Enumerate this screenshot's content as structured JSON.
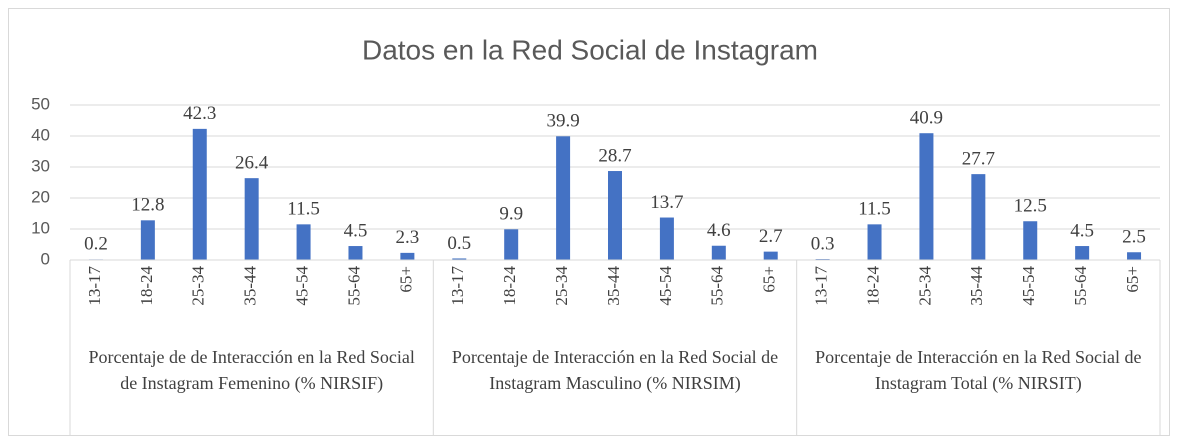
{
  "chart_data": {
    "type": "bar",
    "title": "Datos en la Red Social de Instagram",
    "color": "#4472c4",
    "ylim": [
      0,
      50
    ],
    "yticks": [
      0,
      10,
      20,
      30,
      40,
      50
    ],
    "grid": true,
    "groups": [
      {
        "label": "Porcentaje de de Interacción en la Red Social de Instagram Femenino (% NIRSIF)",
        "categories": [
          "13-17",
          "18-24",
          "25-34",
          "35-44",
          "45-54",
          "55-64",
          "65+"
        ],
        "values": [
          0.2,
          12.8,
          42.3,
          26.4,
          11.5,
          4.5,
          2.3
        ]
      },
      {
        "label": "Porcentaje de Interacción en la Red Social de Instagram Masculino (% NIRSIM)",
        "categories": [
          "13-17",
          "18-24",
          "25-34",
          "35-44",
          "45-54",
          "55-64",
          "65+"
        ],
        "values": [
          0.5,
          9.9,
          39.9,
          28.7,
          13.7,
          4.6,
          2.7
        ]
      },
      {
        "label": "Porcentaje de Interacción en la Red Social de Instagram Total (% NIRSIT)",
        "categories": [
          "13-17",
          "18-24",
          "25-34",
          "35-44",
          "45-54",
          "55-64",
          "65+"
        ],
        "values": [
          0.3,
          11.5,
          40.9,
          27.7,
          12.5,
          4.5,
          2.5
        ]
      }
    ]
  }
}
